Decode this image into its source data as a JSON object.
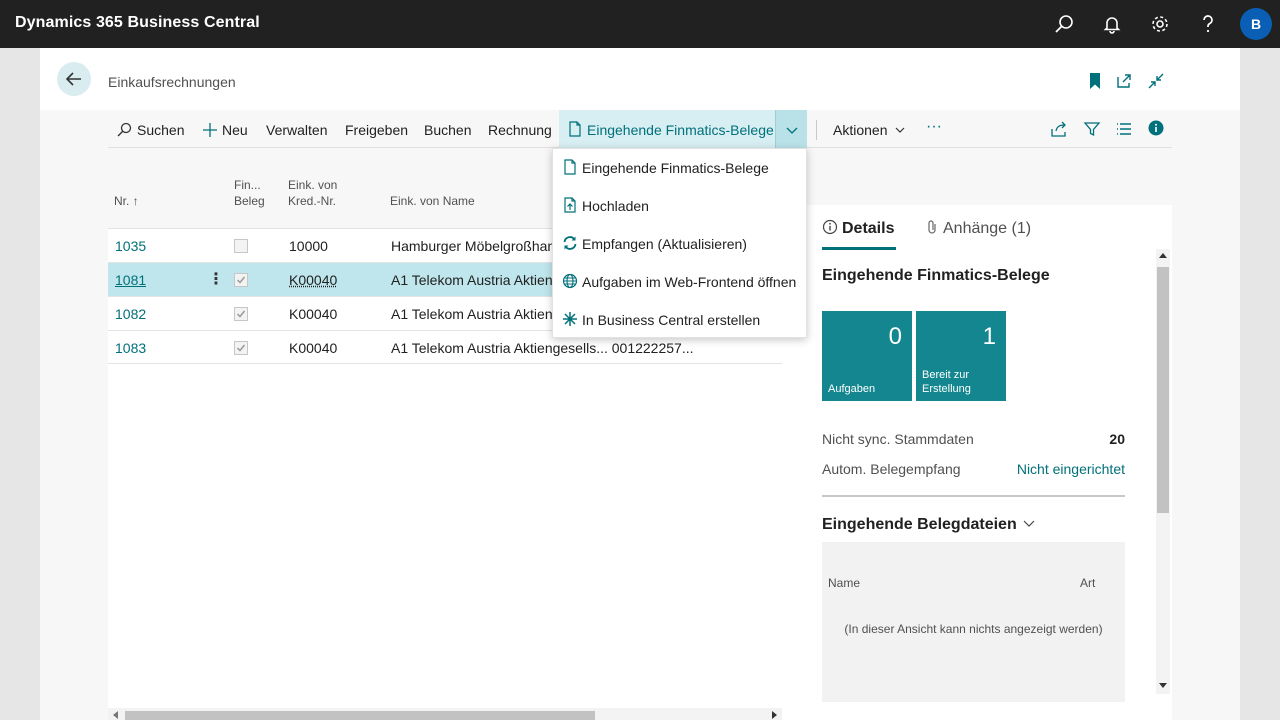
{
  "app": {
    "title": "Dynamics 365 Business Central",
    "user_initial": "B"
  },
  "topbar_icons": [
    "search-icon",
    "bell-icon",
    "gear-icon",
    "help-icon"
  ],
  "page": {
    "breadcrumb": "Einkaufsrechnungen"
  },
  "actions": {
    "search": "Suchen",
    "new": "Neu",
    "manage": "Verwalten",
    "release": "Freigeben",
    "post": "Buchen",
    "invoice": "Rechnung",
    "finmatics": "Eingehende Finmatics-Belege",
    "actions": "Aktionen",
    "more": "···"
  },
  "list": {
    "columns": {
      "nr": "Nr. ↑",
      "fin_1": "Fin...",
      "fin_2": "Beleg",
      "kred_1": "Eink. von",
      "kred_2": "Kred.-Nr.",
      "name": "Eink. von Name"
    },
    "rows": [
      {
        "nr": "1035",
        "checked": false,
        "kred": "10000",
        "name": "Hamburger Möbelgroßhan"
      },
      {
        "nr": "1081",
        "checked": true,
        "kred": "K00040",
        "name": "A1 Telekom Austria Aktien"
      },
      {
        "nr": "1082",
        "checked": true,
        "kred": "K00040",
        "name": "A1 Telekom Austria Aktien"
      },
      {
        "nr": "1083",
        "checked": true,
        "kred": "K00040",
        "name": "A1 Telekom Austria Aktiengesells... 001222257..."
      }
    ]
  },
  "dropdown": {
    "items": [
      {
        "label": "Eingehende Finmatics-Belege",
        "icon": "document-icon"
      },
      {
        "label": "Hochladen",
        "icon": "upload-document-icon"
      },
      {
        "label": "Empfangen (Aktualisieren)",
        "icon": "refresh-icon"
      },
      {
        "label": "Aufgaben im Web-Frontend öffnen",
        "icon": "globe-icon"
      },
      {
        "label": "In Business Central erstellen",
        "icon": "sparkle-icon"
      }
    ]
  },
  "factbox": {
    "tab_details": "Details",
    "tab_attachments": "Anhänge (1)",
    "title": "Eingehende Finmatics-Belege",
    "tiles": [
      {
        "value": "0",
        "label_1": "Aufgaben",
        "label_2": ""
      },
      {
        "value": "1",
        "label_1": "Bereit zur",
        "label_2": "Erstellung"
      }
    ],
    "sync_label": "Nicht sync. Stammdaten",
    "sync_value": "20",
    "auto_label": "Autom. Belegempfang",
    "auto_value": "Nicht eingerichtet",
    "files_title": "Eingehende Belegdateien",
    "files_col_name": "Name",
    "files_col_type": "Art",
    "files_empty": "(In dieser Ansicht kann nichts angezeigt werden)"
  },
  "colors": {
    "accent": "#00707a",
    "tile": "#13868f",
    "appbar": "#212121",
    "avatar": "#0a5fb4"
  }
}
